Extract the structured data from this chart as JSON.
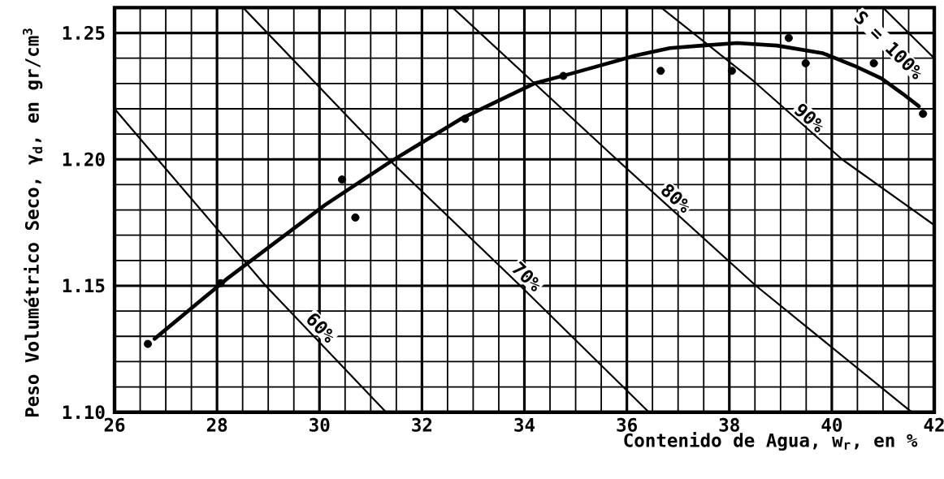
{
  "chart_data": {
    "type": "scatter",
    "xlabel": "Contenido de Agua, w$_{r}$, en %",
    "ylabel": "Peso Volumétrico Seco, γ$_{d}$, en gr/cm$^{3}$",
    "xlim": [
      26,
      42
    ],
    "ylim": [
      1.1,
      1.26
    ],
    "xticks": [
      26,
      {
        "value": 26.5,
        "label": null
      },
      {
        "value": 27,
        "label": null
      },
      {
        "value": 27.5,
        "label": null
      },
      28,
      {
        "value": 28.5,
        "label": null
      },
      {
        "value": 29,
        "label": null
      },
      {
        "value": 29.5,
        "label": null
      },
      30,
      {
        "value": 30.5,
        "label": null
      },
      {
        "value": 31,
        "label": null
      },
      {
        "value": 31.5,
        "label": null
      },
      32,
      {
        "value": 32.5,
        "label": null
      },
      {
        "value": 33,
        "label": null
      },
      {
        "value": 33.5,
        "label": null
      },
      34,
      {
        "value": 34.5,
        "label": null
      },
      {
        "value": 35,
        "label": null
      },
      {
        "value": 35.5,
        "label": null
      },
      36,
      {
        "value": 36.5,
        "label": null
      },
      {
        "value": 37,
        "label": null
      },
      {
        "value": 37.5,
        "label": null
      },
      38,
      {
        "value": 38.5,
        "label": null
      },
      {
        "value": 39,
        "label": null
      },
      {
        "value": 39.5,
        "label": null
      },
      40,
      {
        "value": 40.5,
        "label": null
      },
      {
        "value": 41,
        "label": null
      },
      {
        "value": 41.5,
        "label": null
      },
      42
    ],
    "yticks": [
      {
        "value": 1.1,
        "label": "1.10"
      },
      {
        "value": 1.11,
        "label": null
      },
      {
        "value": 1.12,
        "label": null
      },
      {
        "value": 1.13,
        "label": null
      },
      {
        "value": 1.14,
        "label": null
      },
      1.15,
      {
        "value": 1.16,
        "label": null
      },
      {
        "value": 1.17,
        "label": null
      },
      {
        "value": 1.18,
        "label": null
      },
      {
        "value": 1.19,
        "label": null
      },
      {
        "value": 1.2,
        "label": "1.20"
      },
      {
        "value": 1.21,
        "label": null
      },
      {
        "value": 1.22,
        "label": null
      },
      {
        "value": 1.23,
        "label": null
      },
      {
        "value": 1.24,
        "label": null
      },
      1.25
    ],
    "grid": true,
    "series": [
      {
        "type": "line",
        "name": "60%",
        "color": "#000000",
        "x": [
          26,
          28.95,
          31.3
        ],
        "values": [
          1.22,
          1.15,
          1.1
        ]
      },
      {
        "type": "line",
        "name": "70%",
        "color": "#000000",
        "x": [
          28.51,
          31.35,
          33.92,
          36.43
        ],
        "values": [
          1.26,
          1.2,
          1.15,
          1.1
        ]
      },
      {
        "type": "line",
        "name": "80%",
        "color": "#000000",
        "x": [
          32.6,
          35.8,
          38.52,
          41.56
        ],
        "values": [
          1.26,
          1.2,
          1.15,
          1.1
        ]
      },
      {
        "type": "line",
        "name": "90%",
        "color": "#000000",
        "x": [
          36.67,
          38.47,
          40.2,
          42
        ],
        "values": [
          1.26,
          1.231,
          1.2,
          1.174
        ]
      },
      {
        "type": "line",
        "name": "S = 100%",
        "color": "#000000",
        "x": [
          41.0,
          42
        ],
        "values": [
          1.26,
          1.24
        ]
      },
      {
        "type": "line",
        "color": "#000000",
        "x": [
          26.78,
          28.21,
          30.11,
          31.38,
          32.76,
          34.19,
          34.93,
          36.16,
          36.84,
          37.47,
          38.15,
          38.93,
          39.82,
          40.44,
          40.97,
          41.38,
          41.7
        ],
        "values": [
          1.129,
          1.153,
          1.182,
          1.199,
          1.216,
          1.23,
          1.234,
          1.241,
          1.244,
          1.245,
          1.246,
          1.245,
          1.242,
          1.237,
          1.232,
          1.226,
          1.221
        ]
      },
      {
        "color": "#000000",
        "marker": "circle",
        "x": [
          26.65,
          28.07,
          30.44,
          30.7,
          32.84,
          34.76,
          36.66,
          38.05,
          39.16,
          39.49,
          40.82,
          41.78
        ],
        "values": [
          1.127,
          1.151,
          1.192,
          1.177,
          1.216,
          1.233,
          1.235,
          1.235,
          1.248,
          1.238,
          1.238,
          1.218
        ]
      }
    ]
  }
}
